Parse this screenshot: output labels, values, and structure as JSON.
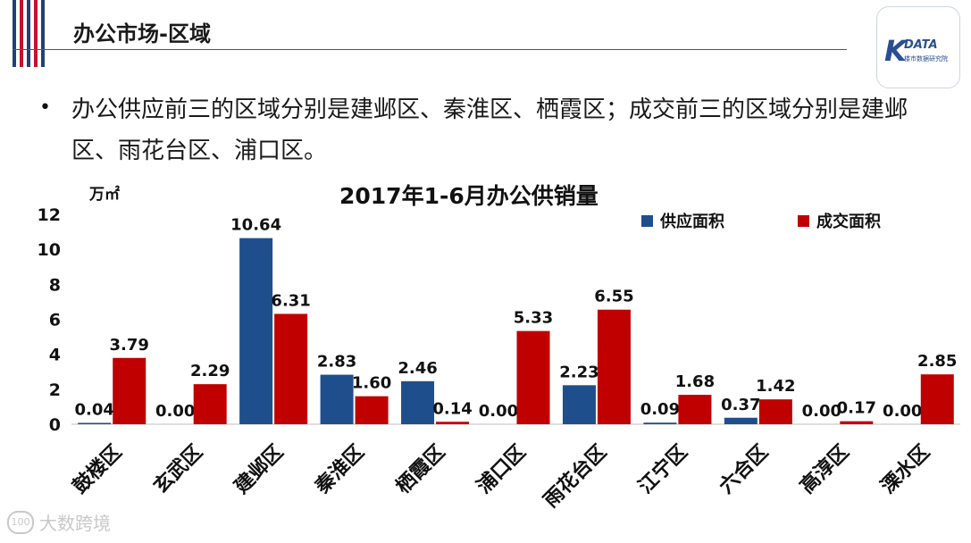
{
  "slide": {
    "title": "办公市场-区域",
    "bullet": "办公供应前三的区域分别是建邺区、秦淮区、栖霞区；成交前三的区域分别是建邺区、雨花台区、浦口区。"
  },
  "logo": {
    "mark": "K",
    "name": "DATA",
    "subtitle": "楼市数据研究院"
  },
  "watermark": {
    "icon": "100",
    "text": "大数跨境"
  },
  "colors": {
    "supply": "#1f4e8c",
    "deal": "#c00000",
    "accent_red": "#c8102e",
    "accent_blue": "#23407a"
  },
  "chart_data": {
    "type": "bar",
    "title": "2017年1-6月办公供销量",
    "ylabel": "万㎡",
    "xlabel": "",
    "ylim": [
      0,
      12
    ],
    "yticks": [
      0,
      2,
      4,
      6,
      8,
      10,
      12
    ],
    "grid": false,
    "legend_position": "top-right",
    "categories": [
      "鼓楼区",
      "玄武区",
      "建邺区",
      "秦淮区",
      "栖霞区",
      "浦口区",
      "雨花台区",
      "江宁区",
      "六合区",
      "高淳区",
      "溧水区"
    ],
    "series": [
      {
        "name": "供应面积",
        "values": [
          0.04,
          0.0,
          10.64,
          2.83,
          2.46,
          0.0,
          2.23,
          0.09,
          0.37,
          0.0,
          0.0
        ],
        "labels": [
          "0.04",
          "0.00",
          "10.64",
          "2.83",
          "2.46",
          "0.00",
          "2.23",
          "0.09",
          "0.37",
          "0.00",
          "0.00"
        ]
      },
      {
        "name": "成交面积",
        "values": [
          3.79,
          2.29,
          6.31,
          1.6,
          0.14,
          5.33,
          6.55,
          1.68,
          1.42,
          0.17,
          2.85
        ],
        "labels": [
          "3.79",
          "2.29",
          "6.31",
          "1.60",
          "0.14",
          "5.33",
          "6.55",
          "1.68",
          "1.42",
          "0.17",
          "2.85"
        ]
      }
    ]
  }
}
